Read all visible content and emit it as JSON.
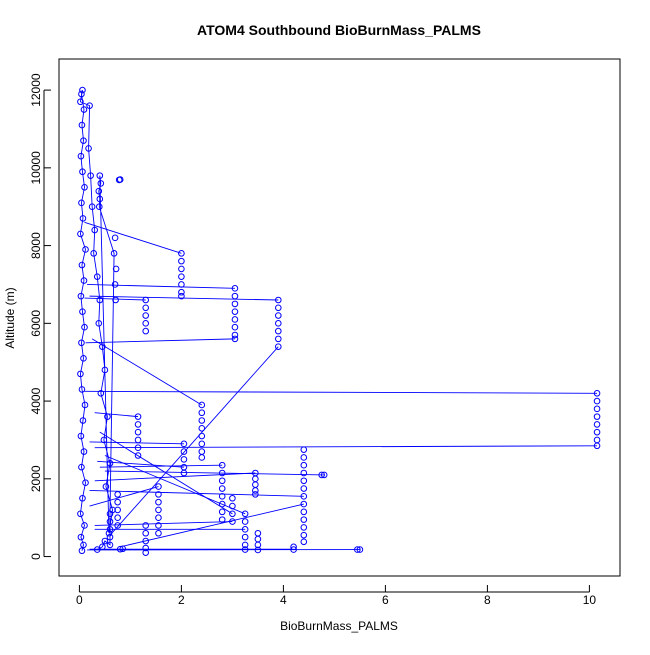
{
  "chart_data": {
    "type": "scatter",
    "title": "ATOM4 Southbound BioBurnMass_PALMS",
    "xlabel": "BioBurnMass_PALMS",
    "ylabel": "Altitude (m)",
    "xlim": [
      -0.4,
      10.6
    ],
    "ylim": [
      -500,
      12800
    ],
    "x_ticks": [
      0,
      2,
      4,
      6,
      8,
      10
    ],
    "y_ticks": [
      0,
      2000,
      4000,
      6000,
      8000,
      10000,
      12000
    ],
    "x_tick_labels": [
      "0",
      "2",
      "4",
      "6",
      "8",
      "10"
    ],
    "y_tick_labels": [
      "0",
      "2000",
      "4000",
      "6000",
      "8000",
      "10000",
      "12000"
    ],
    "grid": false,
    "series_color": "#0000ff",
    "marker": "open-circle",
    "connected_by_line": true,
    "points": [
      [
        0.05,
        150
      ],
      [
        0.08,
        300
      ],
      [
        0.03,
        500
      ],
      [
        0.1,
        800
      ],
      [
        0.02,
        1100
      ],
      [
        0.06,
        1500
      ],
      [
        0.12,
        1900
      ],
      [
        0.04,
        2300
      ],
      [
        0.09,
        2700
      ],
      [
        0.03,
        3100
      ],
      [
        0.07,
        3500
      ],
      [
        0.11,
        3900
      ],
      [
        0.05,
        4300
      ],
      [
        0.02,
        4700
      ],
      [
        0.08,
        5100
      ],
      [
        0.04,
        5500
      ],
      [
        0.1,
        5900
      ],
      [
        0.06,
        6300
      ],
      [
        0.03,
        6700
      ],
      [
        0.09,
        7100
      ],
      [
        0.05,
        7500
      ],
      [
        0.12,
        7900
      ],
      [
        0.02,
        8300
      ],
      [
        0.07,
        8700
      ],
      [
        0.04,
        9100
      ],
      [
        0.1,
        9500
      ],
      [
        0.06,
        9900
      ],
      [
        0.03,
        10300
      ],
      [
        0.08,
        10700
      ],
      [
        0.05,
        11100
      ],
      [
        0.09,
        11500
      ],
      [
        0.04,
        11900
      ],
      [
        0.06,
        12000
      ],
      [
        0.02,
        11700
      ],
      [
        0.2,
        11600
      ],
      [
        0.18,
        10500
      ],
      [
        0.22,
        9800
      ],
      [
        0.25,
        9000
      ],
      [
        0.3,
        8400
      ],
      [
        0.28,
        7800
      ],
      [
        0.35,
        7200
      ],
      [
        0.4,
        6600
      ],
      [
        0.38,
        6000
      ],
      [
        0.45,
        5400
      ],
      [
        0.5,
        4800
      ],
      [
        0.42,
        4200
      ],
      [
        0.55,
        3600
      ],
      [
        0.48,
        3000
      ],
      [
        0.6,
        2400
      ],
      [
        0.52,
        1800
      ],
      [
        0.65,
        1200
      ],
      [
        0.58,
        600
      ],
      [
        0.4,
        9800
      ],
      [
        0.42,
        9600
      ],
      [
        0.38,
        9400
      ],
      [
        0.4,
        9200
      ],
      [
        0.39,
        9000
      ],
      [
        0.7,
        8200
      ],
      [
        0.68,
        7800
      ],
      [
        0.72,
        7400
      ],
      [
        0.7,
        7000
      ],
      [
        0.71,
        6600
      ],
      [
        0.8,
        9700
      ],
      [
        0.78,
        9690
      ],
      [
        2.0,
        7800
      ],
      [
        2.0,
        7600
      ],
      [
        2.0,
        7400
      ],
      [
        2.0,
        7200
      ],
      [
        2.0,
        7000
      ],
      [
        2.0,
        6800
      ],
      [
        2.0,
        6700
      ],
      [
        3.05,
        6900
      ],
      [
        3.05,
        6700
      ],
      [
        3.05,
        6500
      ],
      [
        3.05,
        6300
      ],
      [
        3.05,
        6100
      ],
      [
        3.05,
        5900
      ],
      [
        3.05,
        5700
      ],
      [
        3.05,
        5600
      ],
      [
        3.9,
        6600
      ],
      [
        3.9,
        6400
      ],
      [
        3.9,
        6200
      ],
      [
        3.9,
        6000
      ],
      [
        3.9,
        5800
      ],
      [
        3.9,
        5600
      ],
      [
        3.9,
        5400
      ],
      [
        1.3,
        6600
      ],
      [
        1.3,
        6400
      ],
      [
        1.3,
        6200
      ],
      [
        1.3,
        6000
      ],
      [
        1.3,
        5800
      ],
      [
        10.15,
        4200
      ],
      [
        10.15,
        4000
      ],
      [
        10.15,
        3800
      ],
      [
        10.15,
        3600
      ],
      [
        10.15,
        3400
      ],
      [
        10.15,
        3200
      ],
      [
        10.15,
        3000
      ],
      [
        10.15,
        2850
      ],
      [
        2.4,
        3900
      ],
      [
        2.4,
        3700
      ],
      [
        2.4,
        3500
      ],
      [
        2.4,
        3300
      ],
      [
        2.4,
        3100
      ],
      [
        2.4,
        2900
      ],
      [
        2.4,
        2700
      ],
      [
        2.4,
        2550
      ],
      [
        1.15,
        3600
      ],
      [
        1.15,
        3400
      ],
      [
        1.15,
        3200
      ],
      [
        1.15,
        3000
      ],
      [
        1.15,
        2800
      ],
      [
        1.15,
        2600
      ],
      [
        2.05,
        2900
      ],
      [
        2.05,
        2700
      ],
      [
        2.05,
        2500
      ],
      [
        2.05,
        2300
      ],
      [
        2.05,
        2150
      ],
      [
        4.4,
        2750
      ],
      [
        4.4,
        2550
      ],
      [
        4.4,
        2350
      ],
      [
        4.4,
        2150
      ],
      [
        4.4,
        1950
      ],
      [
        4.4,
        1750
      ],
      [
        4.4,
        1550
      ],
      [
        4.4,
        1350
      ],
      [
        4.4,
        1150
      ],
      [
        4.4,
        950
      ],
      [
        4.4,
        750
      ],
      [
        4.4,
        550
      ],
      [
        4.4,
        380
      ],
      [
        4.8,
        2100
      ],
      [
        4.75,
        2100
      ],
      [
        2.8,
        2350
      ],
      [
        2.8,
        2150
      ],
      [
        2.8,
        1950
      ],
      [
        2.8,
        1750
      ],
      [
        2.8,
        1550
      ],
      [
        2.8,
        1350
      ],
      [
        2.8,
        1150
      ],
      [
        2.8,
        950
      ],
      [
        3.0,
        1500
      ],
      [
        3.0,
        1300
      ],
      [
        3.0,
        1100
      ],
      [
        3.0,
        900
      ],
      [
        3.45,
        2150
      ],
      [
        3.45,
        2000
      ],
      [
        3.45,
        1850
      ],
      [
        3.45,
        1700
      ],
      [
        3.45,
        1600
      ],
      [
        1.55,
        1800
      ],
      [
        1.55,
        1600
      ],
      [
        1.55,
        1400
      ],
      [
        1.55,
        1200
      ],
      [
        1.55,
        1000
      ],
      [
        1.55,
        800
      ],
      [
        1.55,
        600
      ],
      [
        3.25,
        1100
      ],
      [
        3.25,
        900
      ],
      [
        3.25,
        700
      ],
      [
        3.25,
        500
      ],
      [
        3.25,
        300
      ],
      [
        3.25,
        180
      ],
      [
        3.5,
        600
      ],
      [
        3.5,
        450
      ],
      [
        3.5,
        300
      ],
      [
        3.5,
        170
      ],
      [
        4.2,
        250
      ],
      [
        4.2,
        180
      ],
      [
        5.5,
        180
      ],
      [
        5.45,
        180
      ],
      [
        1.3,
        800
      ],
      [
        1.3,
        600
      ],
      [
        1.3,
        400
      ],
      [
        1.3,
        220
      ],
      [
        1.3,
        100
      ],
      [
        0.85,
        200
      ],
      [
        0.8,
        190
      ],
      [
        0.75,
        1600
      ],
      [
        0.75,
        1400
      ],
      [
        0.75,
        1200
      ],
      [
        0.75,
        1000
      ],
      [
        0.75,
        800
      ],
      [
        0.6,
        1100
      ],
      [
        0.6,
        900
      ],
      [
        0.6,
        700
      ],
      [
        0.6,
        500
      ],
      [
        0.6,
        300
      ],
      [
        0.5,
        400
      ],
      [
        0.45,
        250
      ],
      [
        0.35,
        180
      ]
    ],
    "lines": [
      [
        [
          0.1,
          8600
        ],
        [
          2.0,
          7800
        ]
      ],
      [
        [
          0.15,
          7000
        ],
        [
          3.05,
          6900
        ]
      ],
      [
        [
          0.2,
          6700
        ],
        [
          3.9,
          6600
        ]
      ],
      [
        [
          0.1,
          6650
        ],
        [
          1.3,
          6600
        ]
      ],
      [
        [
          0.12,
          5500
        ],
        [
          3.05,
          5600
        ]
      ],
      [
        [
          0.1,
          4250
        ],
        [
          10.15,
          4200
        ]
      ],
      [
        [
          0.3,
          2800
        ],
        [
          10.15,
          2850
        ]
      ],
      [
        [
          0.25,
          5600
        ],
        [
          2.4,
          3900
        ]
      ],
      [
        [
          0.3,
          3700
        ],
        [
          1.15,
          3600
        ]
      ],
      [
        [
          0.2,
          2950
        ],
        [
          2.05,
          2900
        ]
      ],
      [
        [
          0.4,
          2300
        ],
        [
          2.8,
          2350
        ]
      ],
      [
        [
          0.35,
          2450
        ],
        [
          2.05,
          2300
        ]
      ],
      [
        [
          0.5,
          2200
        ],
        [
          4.8,
          2100
        ]
      ],
      [
        [
          0.2,
          1700
        ],
        [
          4.4,
          1550
        ]
      ],
      [
        [
          0.3,
          1950
        ],
        [
          3.45,
          2150
        ]
      ],
      [
        [
          0.6,
          550
        ],
        [
          3.9,
          5400
        ]
      ],
      [
        [
          0.3,
          800
        ],
        [
          3.0,
          900
        ]
      ],
      [
        [
          0.4,
          3200
        ],
        [
          3.0,
          1100
        ]
      ],
      [
        [
          0.2,
          1300
        ],
        [
          1.55,
          1800
        ]
      ],
      [
        [
          0.15,
          170
        ],
        [
          5.5,
          180
        ]
      ],
      [
        [
          0.2,
          190
        ],
        [
          4.2,
          190
        ]
      ],
      [
        [
          0.8,
          250
        ],
        [
          4.4,
          1350
        ]
      ],
      [
        [
          0.3,
          700
        ],
        [
          3.25,
          700
        ]
      ],
      [
        [
          0.5,
          2600
        ],
        [
          3.25,
          1100
        ]
      ]
    ]
  }
}
